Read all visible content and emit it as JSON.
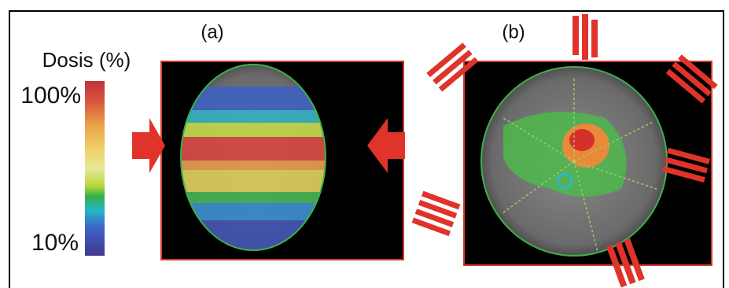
{
  "panels": [
    {
      "label": "(a)"
    },
    {
      "label": "(b)"
    }
  ],
  "colorbar": {
    "title": "Dosis (%)",
    "max_label": "100%",
    "min_label": "10%"
  }
}
